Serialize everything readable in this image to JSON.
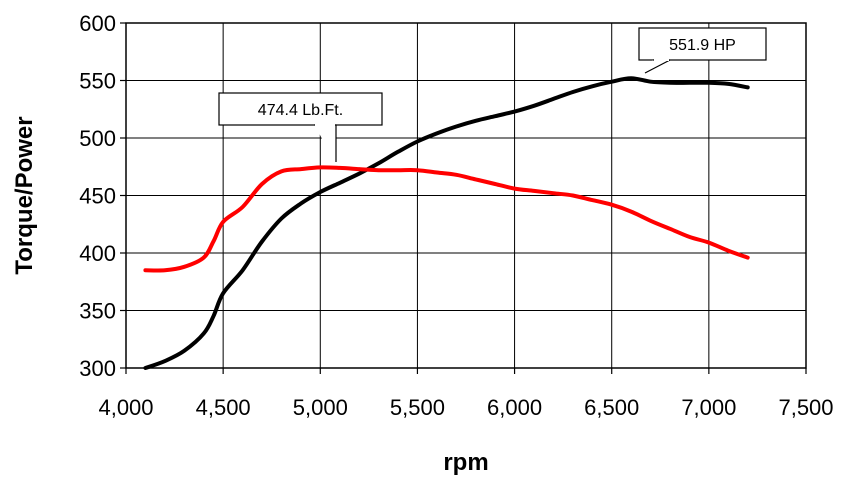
{
  "chart_data": {
    "type": "line",
    "title": "",
    "xlabel": "rpm",
    "ylabel": "Torque/Power",
    "xlim": [
      4000,
      7500
    ],
    "ylim": [
      300,
      600
    ],
    "x_ticks": [
      "4,000",
      "4,500",
      "5,000",
      "5,500",
      "6,000",
      "6,500",
      "7,000",
      "7,500"
    ],
    "y_ticks": [
      "300",
      "350",
      "400",
      "450",
      "500",
      "550",
      "600"
    ],
    "grid": true,
    "legend": "none",
    "series": [
      {
        "color": "#000000",
        "points": [
          [
            4100,
            300
          ],
          [
            4200,
            306
          ],
          [
            4300,
            315
          ],
          [
            4400,
            330
          ],
          [
            4450,
            345
          ],
          [
            4500,
            365
          ],
          [
            4600,
            385
          ],
          [
            4700,
            410
          ],
          [
            4800,
            430
          ],
          [
            4900,
            443
          ],
          [
            5000,
            453
          ],
          [
            5100,
            461
          ],
          [
            5200,
            469
          ],
          [
            5300,
            478
          ],
          [
            5400,
            488
          ],
          [
            5500,
            497
          ],
          [
            5600,
            504
          ],
          [
            5700,
            510
          ],
          [
            5800,
            515
          ],
          [
            5900,
            519
          ],
          [
            6000,
            523
          ],
          [
            6100,
            528
          ],
          [
            6200,
            534
          ],
          [
            6300,
            540
          ],
          [
            6400,
            545
          ],
          [
            6500,
            549
          ],
          [
            6600,
            551.9
          ],
          [
            6700,
            549
          ],
          [
            6800,
            548
          ],
          [
            6900,
            548
          ],
          [
            7000,
            548
          ],
          [
            7100,
            547
          ],
          [
            7200,
            544
          ]
        ]
      },
      {
        "color": "#ff0000",
        "points": [
          [
            4100,
            385
          ],
          [
            4200,
            385
          ],
          [
            4300,
            388
          ],
          [
            4400,
            396
          ],
          [
            4450,
            410
          ],
          [
            4500,
            427
          ],
          [
            4600,
            440
          ],
          [
            4700,
            460
          ],
          [
            4800,
            471
          ],
          [
            4900,
            473
          ],
          [
            5000,
            474.4
          ],
          [
            5100,
            474
          ],
          [
            5200,
            473
          ],
          [
            5300,
            472
          ],
          [
            5400,
            472
          ],
          [
            5500,
            472
          ],
          [
            5600,
            470
          ],
          [
            5700,
            468
          ],
          [
            5800,
            464
          ],
          [
            5900,
            460
          ],
          [
            6000,
            456
          ],
          [
            6100,
            454
          ],
          [
            6200,
            452
          ],
          [
            6300,
            450
          ],
          [
            6400,
            446
          ],
          [
            6500,
            442
          ],
          [
            6600,
            436
          ],
          [
            6700,
            428
          ],
          [
            6800,
            421
          ],
          [
            6900,
            414
          ],
          [
            7000,
            409
          ],
          [
            7100,
            402
          ],
          [
            7200,
            396
          ]
        ]
      }
    ],
    "annotations": [
      {
        "text": "474.4 Lb.Ft.",
        "x": 5080,
        "y": 474.4
      },
      {
        "text": "551.9 HP",
        "x": 6650,
        "y": 553
      }
    ]
  }
}
